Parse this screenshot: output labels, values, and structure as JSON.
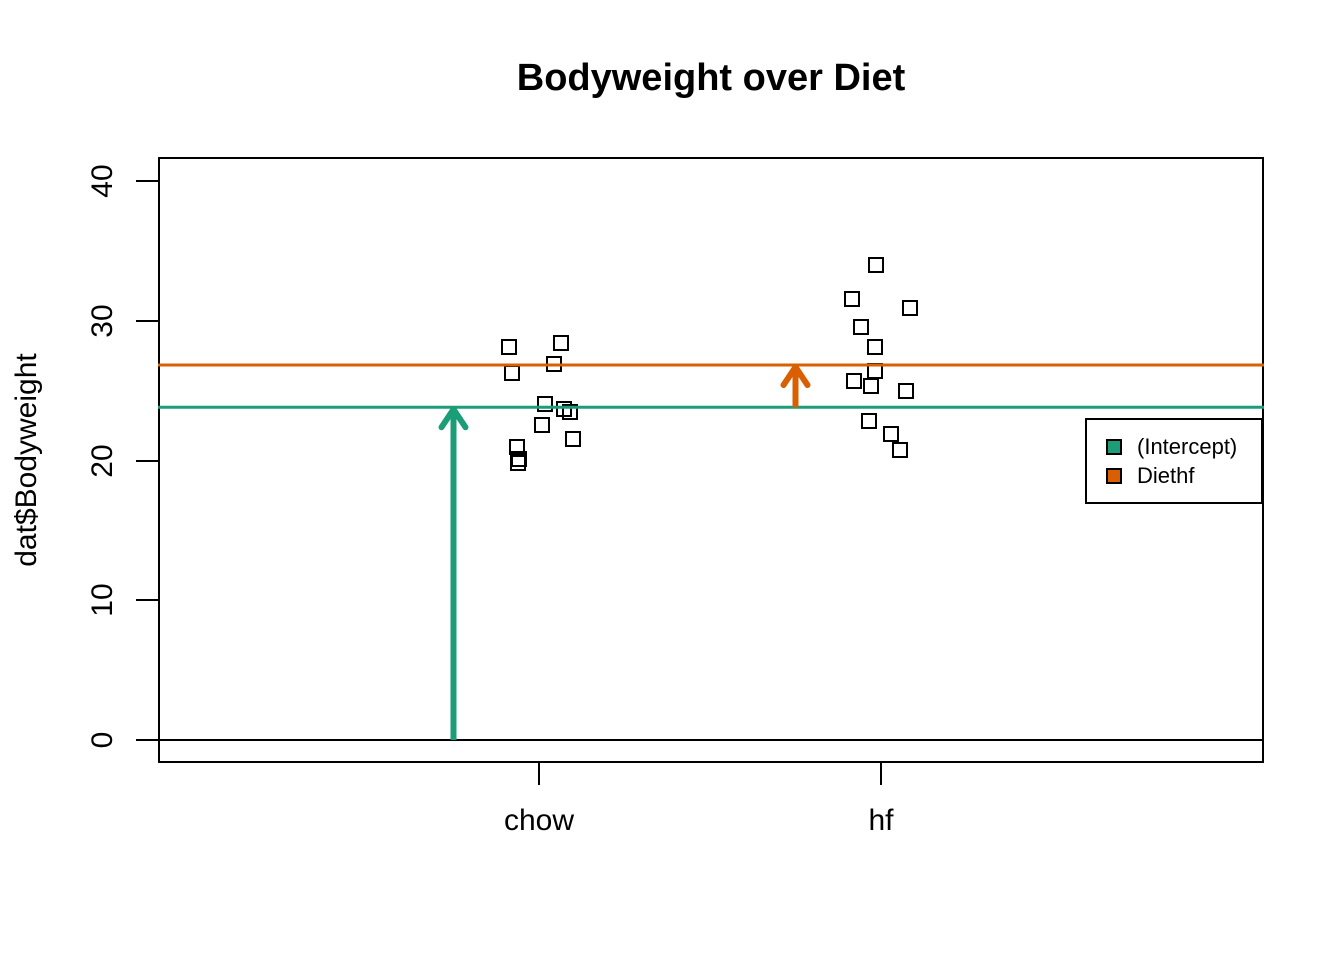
{
  "title": "Bodyweight over Diet",
  "y_axis": {
    "label": "dat$Bodyweight",
    "ticks": [
      0,
      10,
      20,
      30,
      40
    ]
  },
  "x_axis": {
    "categories": [
      "chow",
      "hf"
    ]
  },
  "legend": {
    "items": [
      {
        "label": "(Intercept)",
        "color": "#1B9E77"
      },
      {
        "label": "Diethf",
        "color": "#D95F02"
      }
    ]
  },
  "colors": {
    "intercept": "#1B9E77",
    "diethf": "#D95F02",
    "points": "#000000",
    "background": "#ffffff"
  },
  "chart_data": {
    "type": "scatter",
    "title": "Bodyweight over Diet",
    "xlabel": "",
    "ylabel": "dat$Bodyweight",
    "ylim": [
      0,
      40
    ],
    "y_ticks": [
      0,
      10,
      20,
      30,
      40
    ],
    "x_categories": [
      "chow",
      "hf"
    ],
    "point_style": "open-square",
    "grid": false,
    "legend_position": "right",
    "groups": [
      {
        "name": "chow",
        "x_center": 1,
        "points": [
          {
            "x": 0.912,
            "y": 28.14
          },
          {
            "x": 1.064,
            "y": 28.4
          },
          {
            "x": 1.044,
            "y": 26.91
          },
          {
            "x": 0.921,
            "y": 26.25
          },
          {
            "x": 1.018,
            "y": 24.04
          },
          {
            "x": 1.073,
            "y": 23.68
          },
          {
            "x": 1.091,
            "y": 23.45
          },
          {
            "x": 1.009,
            "y": 22.51
          },
          {
            "x": 1.099,
            "y": 21.51
          },
          {
            "x": 0.936,
            "y": 20.98
          },
          {
            "x": 0.942,
            "y": 20.1
          },
          {
            "x": 0.939,
            "y": 19.79
          }
        ]
      },
      {
        "name": "hf",
        "x_center": 2,
        "points": [
          {
            "x": 1.985,
            "y": 34.02
          },
          {
            "x": 1.915,
            "y": 31.53
          },
          {
            "x": 2.085,
            "y": 30.92
          },
          {
            "x": 1.942,
            "y": 29.58
          },
          {
            "x": 1.982,
            "y": 28.14
          },
          {
            "x": 1.982,
            "y": 26.37
          },
          {
            "x": 1.921,
            "y": 25.71
          },
          {
            "x": 1.971,
            "y": 25.34
          },
          {
            "x": 2.073,
            "y": 24.97
          },
          {
            "x": 1.965,
            "y": 22.8
          },
          {
            "x": 2.029,
            "y": 21.9
          },
          {
            "x": 2.056,
            "y": 20.73
          }
        ]
      }
    ],
    "hlines": [
      {
        "value": 0,
        "color": "#000000",
        "name": "zero-line"
      },
      {
        "value": 23.81,
        "color": "#1B9E77",
        "name": "intercept-line"
      },
      {
        "value": 26.83,
        "color": "#D95F02",
        "name": "hf-mean-line"
      }
    ],
    "arrows": [
      {
        "x": 0.75,
        "y_from": 0,
        "y_to": 23.81,
        "color": "#1B9E77",
        "name": "intercept-arrow"
      },
      {
        "x": 1.75,
        "y_from": 23.81,
        "y_to": 26.83,
        "color": "#D95F02",
        "name": "diethf-arrow"
      }
    ]
  }
}
